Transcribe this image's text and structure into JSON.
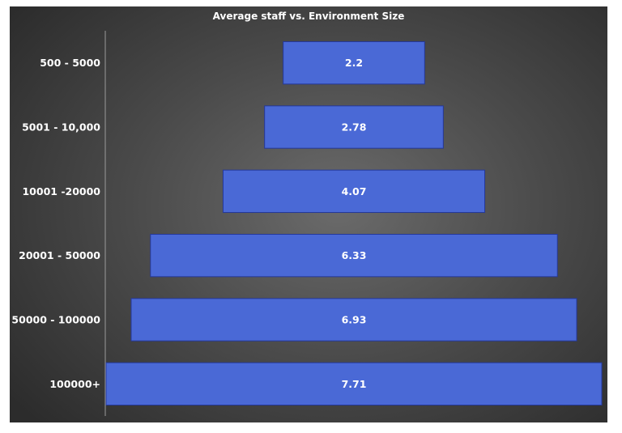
{
  "chart_data": {
    "type": "bar",
    "orientation": "horizontal",
    "layout": "funnel-centered",
    "title": "Average staff vs. Environment Size",
    "xlabel": "",
    "ylabel": "",
    "categories": [
      "500 - 5000",
      "5001 - 10,000",
      "10001 -20000",
      "20001 - 50000",
      "50000 - 100000",
      "100000+"
    ],
    "values": [
      2.2,
      2.78,
      4.07,
      6.33,
      6.93,
      7.71
    ],
    "value_labels": [
      "2.2",
      "2.78",
      "4.07",
      "6.33",
      "6.93",
      "7.71"
    ],
    "xlim": [
      0,
      7.71
    ],
    "grid": false,
    "legend": "none",
    "colors": {
      "bar_fill": "#4a69d6",
      "bar_stroke": "#24389a",
      "background": "#3e3e3e",
      "text": "#ffffff",
      "axis": "#9a9a9a"
    }
  }
}
